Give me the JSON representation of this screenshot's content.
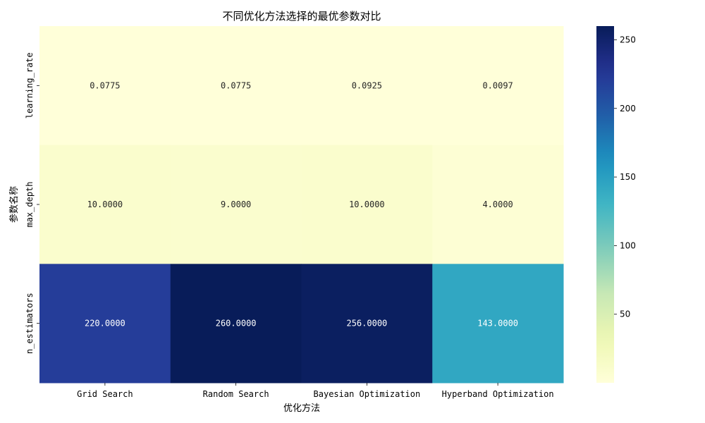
{
  "chart_data": {
    "type": "heatmap",
    "title": "不同优化方法选择的最优参数对比",
    "xlabel": "优化方法",
    "ylabel": "参数名称",
    "columns": [
      "Grid Search",
      "Random Search",
      "Bayesian Optimization",
      "Hyperband Optimization"
    ],
    "rows": [
      "learning_rate",
      "max_depth",
      "n_estimators"
    ],
    "values": [
      [
        0.0775,
        0.0775,
        0.0925,
        0.0097
      ],
      [
        10,
        9,
        10,
        4
      ],
      [
        220,
        260,
        256,
        143
      ]
    ],
    "cell_labels": [
      [
        "0.0775",
        "0.0775",
        "0.0925",
        "0.0097"
      ],
      [
        "10.0000",
        "9.0000",
        "10.0000",
        "4.0000"
      ],
      [
        "220.0000",
        "260.0000",
        "256.0000",
        "143.0000"
      ]
    ],
    "colormap": "YlGnBu",
    "colorbar": {
      "range": [
        0.0097,
        260
      ],
      "ticks": [
        50,
        100,
        150,
        200,
        250
      ],
      "tick_labels": [
        "50",
        "100",
        "150",
        "200",
        "250"
      ]
    }
  }
}
